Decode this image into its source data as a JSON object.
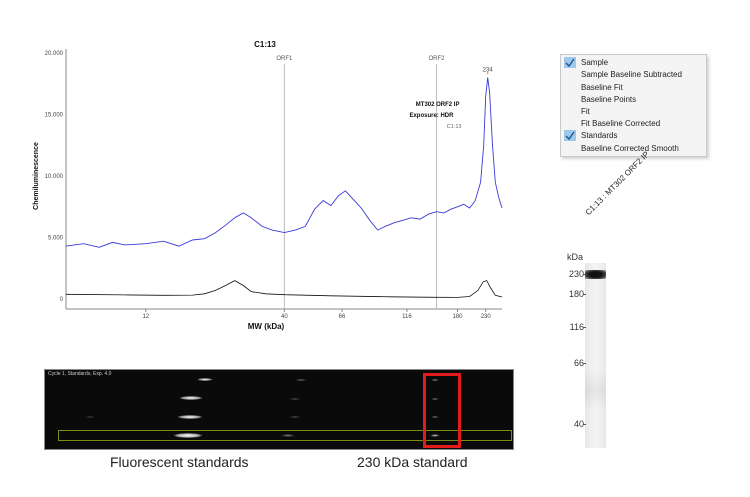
{
  "chart": {
    "title": "C1:13",
    "ylabel": "Chemiluminescence",
    "xlabel": "MW (kDa)",
    "y_ticks": [
      "20.000",
      "15.000",
      "10.000",
      "5.000",
      "0"
    ],
    "x_ticks": [
      "12",
      "40",
      "66",
      "116",
      "180",
      "230"
    ],
    "markers": [
      {
        "label": "ORF1"
      },
      {
        "label": "ORF2"
      }
    ],
    "peak_label": "234",
    "annotation": {
      "line1": "MT302 ORF2 IP",
      "line2": "Exposure: HDR",
      "line3": "C1:13"
    }
  },
  "chart_data": {
    "type": "line",
    "title": "C1:13",
    "xlabel": "MW (kDa)",
    "ylabel": "Chemiluminescence",
    "ylim": [
      0,
      20000
    ],
    "x_ticks_kda": [
      12,
      40,
      66,
      116,
      180,
      230
    ],
    "series": [
      {
        "name": "Sample",
        "color": "#3a3ad8",
        "x": [
          6,
          7,
          8,
          9,
          10,
          12,
          14,
          16,
          18,
          20,
          22,
          24,
          26,
          28,
          30,
          33,
          36,
          40,
          44,
          48,
          52,
          56,
          60,
          64,
          68,
          72,
          78,
          84,
          90,
          96,
          104,
          112,
          120,
          130,
          140,
          150,
          160,
          170,
          180,
          190,
          200,
          210,
          220,
          226,
          230,
          234,
          238,
          244,
          250,
          258,
          265
        ],
        "y": [
          4300,
          4500,
          4200,
          4600,
          4400,
          4500,
          4700,
          4300,
          4800,
          4900,
          5400,
          6000,
          6600,
          7000,
          6600,
          5900,
          5600,
          5400,
          5600,
          5900,
          7300,
          8000,
          7600,
          8400,
          8800,
          8200,
          7400,
          6400,
          5600,
          5900,
          6200,
          6400,
          6600,
          6500,
          6900,
          7100,
          7000,
          7300,
          7500,
          7700,
          7400,
          8000,
          9500,
          12500,
          16500,
          18000,
          16800,
          12500,
          9500,
          8200,
          7400
        ]
      },
      {
        "name": "Standards",
        "color": "#111111",
        "x": [
          6,
          10,
          14,
          18,
          20,
          22,
          24,
          26,
          28,
          30,
          34,
          40,
          60,
          100,
          150,
          180,
          200,
          215,
          225,
          232,
          240,
          250,
          265
        ],
        "y": [
          380,
          330,
          300,
          320,
          420,
          700,
          1100,
          1500,
          1100,
          600,
          420,
          350,
          260,
          180,
          140,
          130,
          200,
          700,
          1400,
          1500,
          900,
          300,
          160
        ]
      }
    ]
  },
  "menu": {
    "items": [
      {
        "label": "Sample",
        "checked": true
      },
      {
        "label": "Sample Baseline Subtracted",
        "checked": false
      },
      {
        "label": "Baseline Fit",
        "checked": false
      },
      {
        "label": "Baseline Points",
        "checked": false
      },
      {
        "label": "Fit",
        "checked": false
      },
      {
        "label": "Fit Baseline Corrected",
        "checked": false
      },
      {
        "label": "Standards",
        "checked": true
      },
      {
        "label": "Baseline Corrected Smooth",
        "checked": false
      }
    ]
  },
  "strip": {
    "label": "Cycle 1, Standards, Exp. 4.0"
  },
  "captions": {
    "left": "Fluorescent standards",
    "right": "230 kDa standard"
  },
  "lane": {
    "label": "C1:13 : MT302 ORF2 IP",
    "unit": "kDa",
    "ticks": [
      "230",
      "180",
      "116",
      "66",
      "40"
    ]
  }
}
